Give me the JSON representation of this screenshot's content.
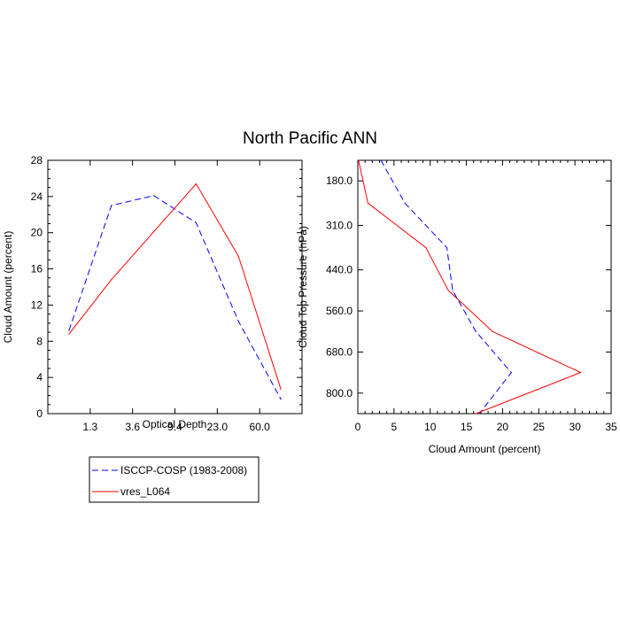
{
  "figure": {
    "title": "North Pacific ANN"
  },
  "chart_data": [
    {
      "type": "line",
      "xlabel": "Optical Depth",
      "ylabel": "Cloud Amount (percent)",
      "x_categories": [
        "",
        "1.3",
        "3.6",
        "9.4",
        "23.0",
        "60.0",
        ""
      ],
      "xtick_labels": [
        "1.3",
        "3.6",
        "9.4",
        "23.0",
        "60.0"
      ],
      "ylim": [
        0,
        28
      ],
      "yticks": [
        0,
        4,
        8,
        12,
        16,
        20,
        24,
        28
      ],
      "series": [
        {
          "name": "ISCCP-COSP (1983-2008)",
          "color": "#0000ff",
          "style": "dashed",
          "values": [
            9.2,
            23.0,
            24.1,
            21.1,
            10.2,
            1.6
          ]
        },
        {
          "name": "vres_L064",
          "color": "#ff0000",
          "style": "solid",
          "values": [
            8.8,
            14.8,
            20.1,
            25.4,
            17.4,
            2.7
          ]
        }
      ]
    },
    {
      "type": "line",
      "xlabel": "Cloud Amount (percent)",
      "ylabel": "Cloud Top Pressure (hPa)",
      "xlim": [
        0,
        35
      ],
      "xticks": [
        0,
        5,
        10,
        15,
        20,
        25,
        30,
        35
      ],
      "yticks": [
        180.0,
        310.0,
        440.0,
        560.0,
        680.0,
        800.0
      ],
      "ytick_labels": [
        "180.0",
        "310.0",
        "440.0",
        "560.0",
        "680.0",
        "800.0"
      ],
      "y_reversed": true,
      "series": [
        {
          "name": "ISCCP-COSP (1983-2008)",
          "color": "#0000ff",
          "style": "dashed",
          "points": [
            [
              3.2,
              120
            ],
            [
              6.5,
              245
            ],
            [
              12.3,
              375
            ],
            [
              13.1,
              500
            ],
            [
              16.3,
              620
            ],
            [
              21.2,
              740
            ],
            [
              16.8,
              860
            ]
          ]
        },
        {
          "name": "vres_L064",
          "color": "#ff0000",
          "style": "solid",
          "points": [
            [
              0.1,
              120
            ],
            [
              1.4,
              245
            ],
            [
              9.4,
              375
            ],
            [
              12.5,
              500
            ],
            [
              18.6,
              620
            ],
            [
              30.8,
              740
            ],
            [
              16.3,
              860
            ]
          ]
        }
      ]
    }
  ],
  "legend": {
    "placement": "bottom-left",
    "entries": [
      "ISCCP-COSP (1983-2008)",
      "vres_L064"
    ]
  }
}
